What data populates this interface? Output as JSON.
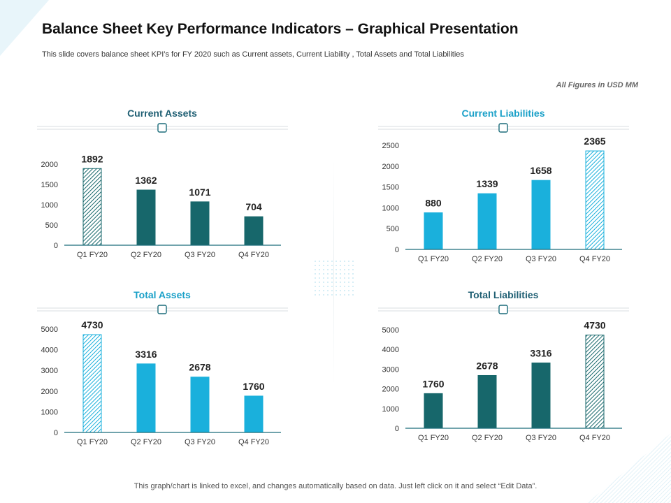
{
  "header": {
    "title": "Balance Sheet Key Performance Indicators – Graphical Presentation",
    "subtitle": "This slide covers balance sheet KPI’s  for FY 2020 such as Current assets, Current Liability , Total Assets and Total Liabilities",
    "units_note": "All Figures in USD MM"
  },
  "footer": {
    "text": "This graph/chart is linked to excel,  and changes automatically based on data. Just left click on it and select “Edit Data”."
  },
  "colors": {
    "dark_teal": "#17676b",
    "cyan": "#1ab0dc",
    "title_dark": "#1f5f73",
    "title_cyan": "#1aa0c8",
    "axis": "#1b6c7a"
  },
  "chart_data": [
    {
      "type": "bar",
      "title": "Current Assets",
      "categories": [
        "Q1 FY20",
        "Q2 FY20",
        "Q3 FY20",
        "Q4 FY20"
      ],
      "values": [
        1892,
        1362,
        1071,
        704
      ],
      "yticks": [
        0,
        500,
        1000,
        1500,
        2000
      ],
      "ylim": [
        0,
        2200
      ],
      "bar_styles": [
        "hatch-dark",
        "solid-dark",
        "solid-dark",
        "solid-dark"
      ],
      "title_color": "dark"
    },
    {
      "type": "bar",
      "title": "Current Liabilities",
      "categories": [
        "Q1 FY20",
        "Q2 FY20",
        "Q3 FY20",
        "Q4 FY20"
      ],
      "values": [
        880,
        1339,
        1658,
        2365
      ],
      "yticks": [
        0,
        500,
        1000,
        1500,
        2000,
        2500
      ],
      "ylim": [
        0,
        2600
      ],
      "bar_styles": [
        "solid-cyan",
        "solid-cyan",
        "solid-cyan",
        "hatch-cyan"
      ],
      "title_color": "cyan"
    },
    {
      "type": "bar",
      "title": "Total Assets",
      "categories": [
        "Q1 FY20",
        "Q2 FY20",
        "Q3 FY20",
        "Q4 FY20"
      ],
      "values": [
        4730,
        3316,
        2678,
        1760
      ],
      "yticks": [
        0,
        1000,
        2000,
        3000,
        4000,
        5000
      ],
      "ylim": [
        0,
        5300
      ],
      "bar_styles": [
        "hatch-cyan",
        "solid-cyan",
        "solid-cyan",
        "solid-cyan"
      ],
      "title_color": "cyan"
    },
    {
      "type": "bar",
      "title": "Total Liabilities",
      "categories": [
        "Q1 FY20",
        "Q2 FY20",
        "Q3 FY20",
        "Q4 FY20"
      ],
      "values": [
        1760,
        2678,
        3316,
        4730
      ],
      "yticks": [
        0,
        1000,
        2000,
        3000,
        4000,
        5000
      ],
      "ylim": [
        0,
        5300
      ],
      "bar_styles": [
        "solid-dark",
        "solid-dark",
        "solid-dark",
        "hatch-dark"
      ],
      "title_color": "dark"
    }
  ]
}
